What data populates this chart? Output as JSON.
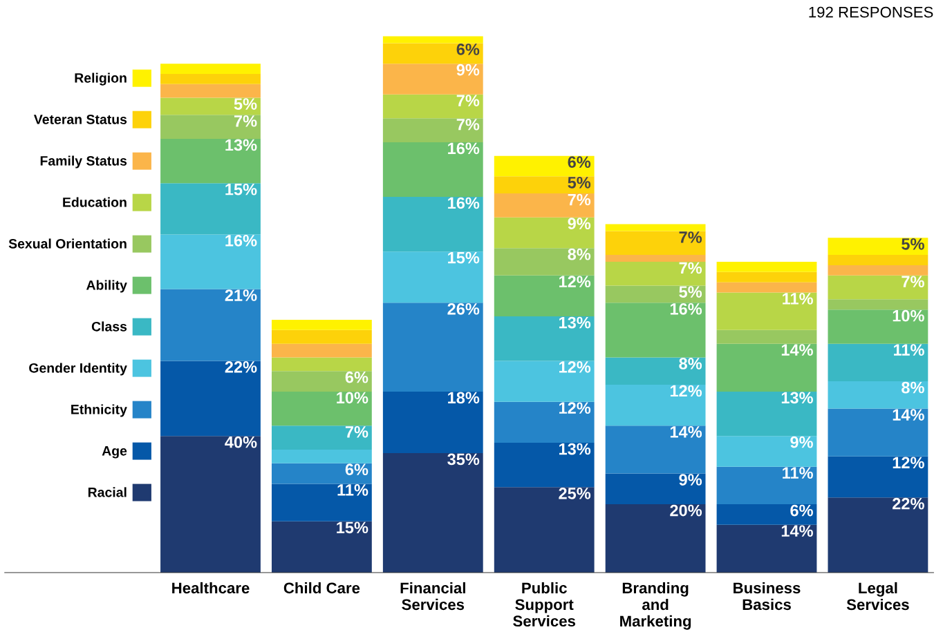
{
  "chart_data": {
    "type": "bar",
    "stacked": true,
    "legend": "left",
    "tick_labels": "x",
    "grid": false,
    "categories": [
      "Healthcare",
      "Child Care",
      "Financial\nServices",
      "Public\nSupport\nServices",
      "Branding\nand\nMarketing",
      "Business\nBasics",
      "Legal\nServices"
    ],
    "annotations": [
      "192 RESPONSES"
    ],
    "series": [
      {
        "name": "Racial",
        "color": "#1f3a70",
        "values": [
          40,
          15,
          35,
          25,
          20,
          14,
          22
        ],
        "value_labels": [
          "40%",
          "15%",
          "35%",
          "25%",
          "20%",
          "14%",
          "22%"
        ]
      },
      {
        "name": "Age",
        "color": "#0558a8",
        "values": [
          22,
          11,
          18,
          13,
          9,
          6,
          12
        ],
        "value_labels": [
          "22%",
          "11%",
          "18%",
          "13%",
          "9%",
          "6%",
          "12%"
        ]
      },
      {
        "name": "Ethnicity",
        "color": "#2584c8",
        "values": [
          21,
          6,
          26,
          12,
          14,
          11,
          14
        ],
        "value_labels": [
          "21%",
          "6%",
          "26%",
          "12%",
          "14%",
          "11%",
          "14%"
        ]
      },
      {
        "name": "Gender Identity",
        "color": "#4cc4e0",
        "values": [
          16,
          4,
          15,
          12,
          12,
          9,
          8
        ],
        "value_labels": [
          "16%",
          null,
          "15%",
          "12%",
          "12%",
          "9%",
          "8%"
        ]
      },
      {
        "name": "Class",
        "color": "#3ab8c4",
        "values": [
          15,
          7,
          16,
          13,
          8,
          13,
          11
        ],
        "value_labels": [
          "15%",
          "7%",
          "16%",
          "13%",
          "8%",
          "13%",
          "11%"
        ]
      },
      {
        "name": "Ability",
        "color": "#6cc06c",
        "values": [
          13,
          10,
          16,
          12,
          16,
          14,
          10
        ],
        "value_labels": [
          "13%",
          "10%",
          "16%",
          "12%",
          "16%",
          "14%",
          "10%"
        ]
      },
      {
        "name": "Sexual Orientation",
        "color": "#98c860",
        "values": [
          7,
          6,
          7,
          8,
          5,
          4,
          3
        ],
        "value_labels": [
          "7%",
          "6%",
          "7%",
          "8%",
          "5%",
          null,
          null
        ]
      },
      {
        "name": "Education",
        "color": "#b8d647",
        "values": [
          5,
          4,
          7,
          9,
          7,
          11,
          7
        ],
        "value_labels": [
          "5%",
          null,
          "7%",
          "9%",
          "7%",
          "11%",
          "7%"
        ]
      },
      {
        "name": "Family Status",
        "color": "#fbb54a",
        "values": [
          4,
          4,
          9,
          7,
          2,
          3,
          3
        ],
        "value_labels": [
          null,
          null,
          "9%",
          "7%",
          null,
          null,
          null
        ]
      },
      {
        "name": "Veteran Status",
        "color": "#fdd20a",
        "values": [
          3,
          4,
          6,
          5,
          7,
          3,
          3
        ],
        "value_labels": [
          null,
          null,
          "6%",
          "5%",
          "7%",
          null,
          null
        ]
      },
      {
        "name": "Religion",
        "color": "#fff200",
        "values": [
          3,
          3,
          2,
          6,
          2,
          3,
          5
        ],
        "value_labels": [
          null,
          null,
          null,
          "6%",
          null,
          null,
          "5%"
        ]
      }
    ]
  }
}
